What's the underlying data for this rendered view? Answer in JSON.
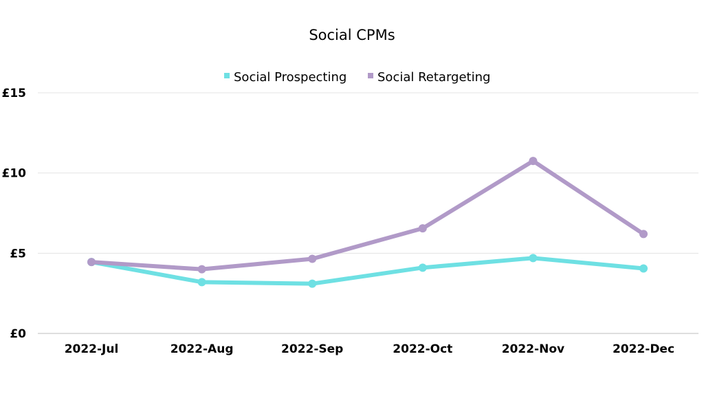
{
  "chart_data": {
    "type": "line",
    "title": "Social CPMs",
    "xlabel": "",
    "ylabel": "",
    "categories": [
      "2022-Jul",
      "2022-Aug",
      "2022-Sep",
      "2022-Oct",
      "2022-Nov",
      "2022-Dec"
    ],
    "ylim": [
      0,
      15
    ],
    "yticks": [
      0,
      5,
      10,
      15
    ],
    "ytick_labels": [
      "£0",
      "£5",
      "£10",
      "£15"
    ],
    "grid": true,
    "legend_position": "top-center",
    "series": [
      {
        "name": "Social Prospecting",
        "color": "#6ee0e3",
        "values": [
          4.45,
          3.2,
          3.1,
          4.1,
          4.7,
          4.05
        ]
      },
      {
        "name": "Social Retargeting",
        "color": "#b19ac8",
        "values": [
          4.45,
          4.0,
          4.65,
          6.55,
          10.75,
          6.2
        ]
      }
    ]
  }
}
